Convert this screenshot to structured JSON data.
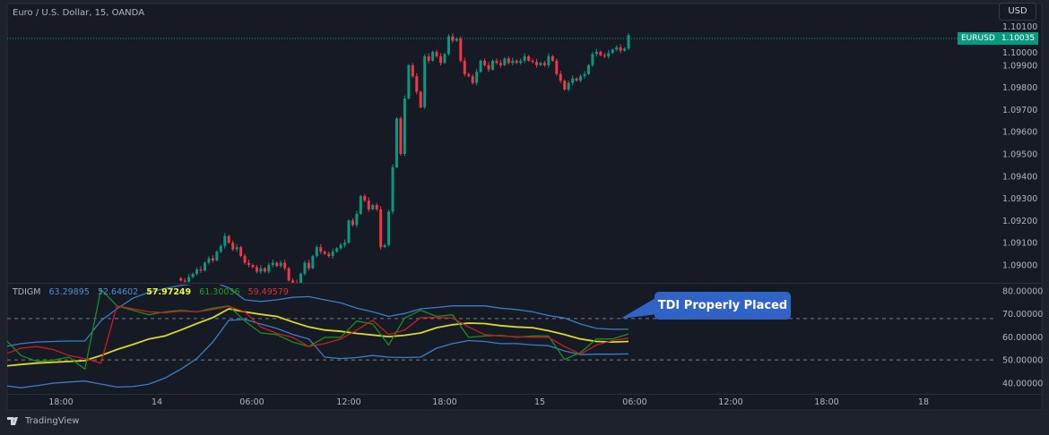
{
  "header": {
    "title": "Euro / U.S. Dollar, 15, OANDA",
    "currency_button": "USD"
  },
  "price_marker": {
    "symbol": "EURUSD",
    "last_price": "1.10035"
  },
  "indicator": {
    "name": "TDIGM",
    "values": [
      "63.29895",
      "52.64602",
      "57.97249",
      "61.30036",
      "59.49579"
    ],
    "value_colors": [
      "#4a8fd0",
      "#4a8fd0",
      "#f2f23a",
      "#22a022",
      "#e0302f"
    ]
  },
  "annotation": {
    "text": "TDI Properly Placed",
    "color": "#2f63c6"
  },
  "branding": {
    "logo_text": "TradingView"
  },
  "colors": {
    "up": "#089981",
    "down": "#f23645",
    "background": "#161a25"
  },
  "chart_data": [
    {
      "type": "candlestick",
      "symbol": "EURUSD",
      "interval": "15",
      "y_axis_ticks": [
        "1.10100",
        "1.10000",
        "1.09900",
        "1.09800",
        "1.09700",
        "1.09600",
        "1.09500",
        "1.09400",
        "1.09300",
        "1.09200",
        "1.09100",
        "1.09000"
      ],
      "x_axis_ticks": [
        "18:00",
        "14",
        "06:00",
        "12:00",
        "18:00",
        "15",
        "06:00",
        "12:00",
        "18:00",
        "18"
      ],
      "closes": [
        1.0893,
        1.08925,
        1.08945,
        1.0896,
        1.0898,
        1.08975,
        1.0901,
        1.0903,
        1.0902,
        1.0906,
        1.09085,
        1.0913,
        1.091,
        1.0907,
        1.0908,
        1.0904,
        1.0901,
        1.09,
        1.0899,
        1.0897,
        1.08985,
        1.0897,
        1.09,
        1.0901,
        1.08995,
        1.0901,
        1.08985,
        1.0893,
        1.0892,
        1.08915,
        1.0896,
        1.0901,
        1.08985,
        1.0904,
        1.0908,
        1.0906,
        1.0905,
        1.0904,
        1.0906,
        1.09075,
        1.0909,
        1.091,
        1.092,
        1.0918,
        1.0923,
        1.0931,
        1.0929,
        1.0925,
        1.0927,
        1.0925,
        1.0908,
        1.0909,
        1.0924,
        1.0944,
        1.0966,
        1.095,
        1.0975,
        1.099,
        1.0985,
        1.0978,
        1.0971,
        1.0994,
        1.0992,
        1.0996,
        1.0994,
        1.0991,
        1.0995,
        1.1003,
        1.1001,
        1.1002,
        1.0992,
        1.0986,
        1.0985,
        1.0982,
        1.0987,
        1.0992,
        1.099,
        1.0988,
        1.0992,
        1.0991,
        1.099,
        1.0993,
        1.0991,
        1.0992,
        1.0991,
        1.0992,
        1.0994,
        1.0992,
        1.09915,
        1.099,
        1.0991,
        1.099,
        1.0994,
        1.0992,
        1.0986,
        1.0983,
        1.0979,
        1.0982,
        1.0984,
        1.0983,
        1.0985,
        1.0986,
        1.099,
        1.0995,
        1.0996,
        1.09945,
        1.0994,
        1.09955,
        1.0997,
        1.0998,
        1.09965,
        1.09975,
        1.10035
      ]
    },
    {
      "type": "line",
      "name": "TDIGM",
      "y_axis_ticks": [
        "80.00000",
        "70.00000",
        "60.00000",
        "50.00000",
        "40.00000"
      ],
      "ylim": [
        38,
        83
      ],
      "levels": [
        68,
        50
      ],
      "series": [
        {
          "color": "#3a7fc4",
          "values": [
            55.8,
            57.1,
            57.8,
            58.0,
            58.2,
            58.2,
            67.0,
            72.2,
            76.8,
            79.4,
            81.0,
            82.4,
            83.2,
            84.0,
            81.3,
            76.1,
            75.4,
            76.1,
            77.2,
            77.5,
            76.1,
            74.8,
            72.5,
            70.9,
            68.9,
            70.2,
            72.2,
            72.8,
            73.5,
            73.5,
            73.5,
            72.5,
            71.9,
            70.9,
            69.3,
            68.2,
            65.6,
            63.7,
            63.3,
            63.3
          ]
        },
        {
          "color": "#3a7fc4",
          "values": [
            38.8,
            37.9,
            38.8,
            39.9,
            40.4,
            40.8,
            39.5,
            38.2,
            38.4,
            39.5,
            42.1,
            46.0,
            50.6,
            57.8,
            67.2,
            67.6,
            65.6,
            63.7,
            61.1,
            59.1,
            51.2,
            50.6,
            51.0,
            51.9,
            51.2,
            51.0,
            51.2,
            55.1,
            57.1,
            58.4,
            58.0,
            57.1,
            57.1,
            56.5,
            56.2,
            53.9,
            52.3,
            52.5,
            52.5,
            52.6
          ]
        },
        {
          "color": "#d8d82a",
          "values": [
            47.3,
            48.0,
            48.6,
            49.0,
            49.3,
            49.7,
            51.9,
            54.5,
            56.7,
            59.1,
            60.4,
            63.0,
            65.8,
            68.4,
            72.2,
            70.9,
            69.8,
            68.9,
            66.5,
            64.3,
            63.0,
            62.4,
            61.5,
            60.8,
            60.1,
            60.7,
            61.7,
            64.0,
            65.3,
            66.0,
            65.8,
            64.9,
            64.3,
            64.0,
            62.7,
            61.0,
            59.1,
            58.0,
            57.8,
            58.0
          ]
        },
        {
          "color": "#1b8f1b",
          "values": [
            59.1,
            51.9,
            49.3,
            49.9,
            51.2,
            46.0,
            80.7,
            73.5,
            71.6,
            69.6,
            70.9,
            71.6,
            70.9,
            72.5,
            73.5,
            66.9,
            61.7,
            61.0,
            57.8,
            55.8,
            59.8,
            59.8,
            66.9,
            65.6,
            56.5,
            68.2,
            71.6,
            68.9,
            69.6,
            59.8,
            60.4,
            60.7,
            59.8,
            60.4,
            60.4,
            50.2,
            53.2,
            59.1,
            59.1,
            61.3
          ]
        },
        {
          "color": "#c91e1e",
          "values": [
            52.5,
            55.1,
            55.8,
            54.5,
            51.9,
            50.6,
            48.6,
            73.5,
            72.2,
            70.9,
            70.5,
            71.2,
            70.9,
            71.9,
            73.3,
            70.9,
            64.3,
            61.5,
            59.8,
            55.8,
            57.1,
            59.1,
            63.0,
            67.2,
            61.0,
            63.0,
            68.4,
            68.4,
            68.2,
            64.3,
            61.0,
            60.4,
            60.1,
            59.8,
            59.8,
            55.8,
            52.5,
            56.5,
            58.4,
            59.5
          ]
        }
      ]
    }
  ]
}
